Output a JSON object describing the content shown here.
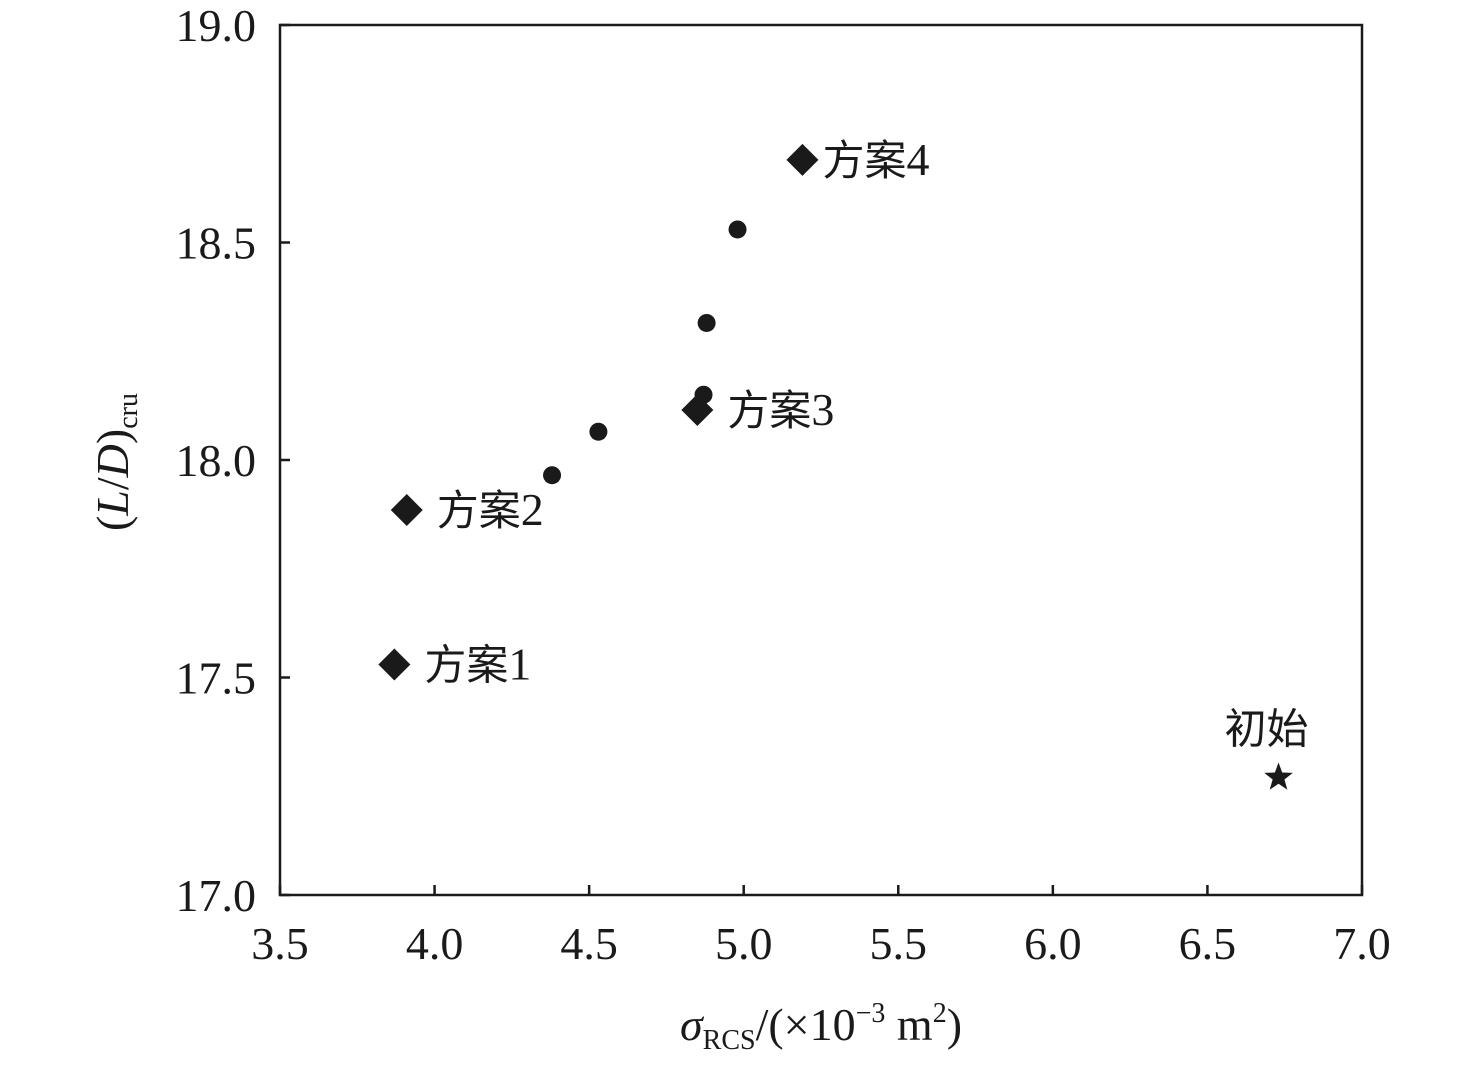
{
  "chart_data": {
    "type": "scatter",
    "title": "",
    "xlabel": {
      "symbol": "σ",
      "subscript": "RCS",
      "rest": "/(×10",
      "exponent": "−3",
      "unit": " m",
      "unit_exponent": "2",
      "close": ")"
    },
    "ylabel": {
      "open": "(",
      "L": "L",
      "slash": "/",
      "D": "D",
      "close": ")",
      "subscript": "cru"
    },
    "xlim": [
      3.5,
      7.0
    ],
    "ylim": [
      17.0,
      19.0
    ],
    "xticks": [
      "3.5",
      "4.0",
      "4.5",
      "5.0",
      "5.5",
      "6.0",
      "6.5",
      "7.0"
    ],
    "yticks": [
      "17.0",
      "17.5",
      "18.0",
      "18.5",
      "19.0"
    ],
    "grid": false,
    "series": [
      {
        "marker": "circle",
        "points": [
          {
            "x": 4.38,
            "y": 17.965
          },
          {
            "x": 4.53,
            "y": 18.065
          },
          {
            "x": 4.87,
            "y": 18.15
          },
          {
            "x": 4.88,
            "y": 18.315
          },
          {
            "x": 4.98,
            "y": 18.53
          }
        ]
      },
      {
        "marker": "diamond",
        "points": [
          {
            "x": 3.87,
            "y": 17.53,
            "label": "方案1"
          },
          {
            "x": 3.91,
            "y": 17.885,
            "label": "方案2"
          },
          {
            "x": 4.85,
            "y": 18.115,
            "label": "方案3"
          },
          {
            "x": 5.19,
            "y": 18.69,
            "label": "方案4"
          }
        ]
      },
      {
        "marker": "star",
        "points": [
          {
            "x": 6.73,
            "y": 17.27,
            "label": "初始"
          }
        ]
      }
    ]
  }
}
